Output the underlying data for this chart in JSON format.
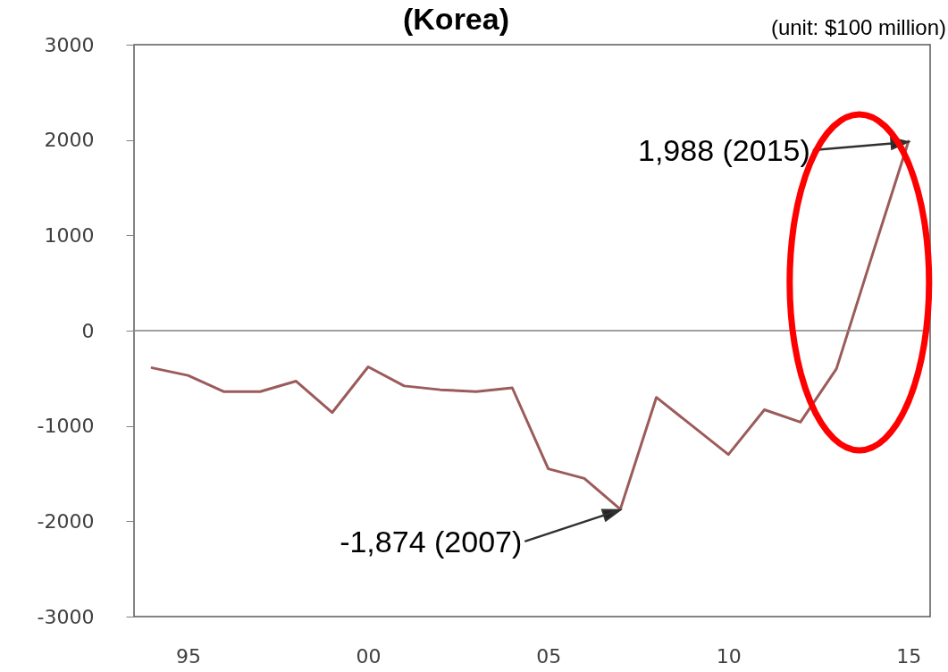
{
  "chart_data": {
    "type": "line",
    "title": "(Korea)",
    "annotations": [
      "(unit: $100 million)",
      {
        "text": "1,988 (2015)",
        "x": 2015,
        "y": 1988
      },
      {
        "text": "-1,874 (2007)",
        "x": 2007,
        "y": -1874
      }
    ],
    "x": [
      1994,
      1995,
      1996,
      1997,
      1998,
      1999,
      2000,
      2001,
      2002,
      2003,
      2004,
      2005,
      2006,
      2007,
      2008,
      2009,
      2010,
      2011,
      2012,
      2013,
      2014,
      2015
    ],
    "series": [
      {
        "color": "#9c5b5b",
        "values": [
          -390,
          -470,
          -640,
          -640,
          -530,
          -860,
          -380,
          -580,
          -620,
          -640,
          -600,
          -1450,
          -1550,
          -1874,
          -700,
          -1000,
          -1300,
          -830,
          -960,
          -400,
          800,
          1988
        ]
      }
    ],
    "xlim": [
      1993.5,
      2015.6
    ],
    "xticks": [
      {
        "value": 1995,
        "label": "95"
      },
      {
        "value": 2000,
        "label": "00"
      },
      {
        "value": 2005,
        "label": "05"
      },
      {
        "value": 2010,
        "label": "10"
      },
      {
        "value": 2015,
        "label": "15"
      }
    ],
    "ylim": [
      -3000,
      3000
    ],
    "yticks": [
      -3000,
      -2000,
      -1000,
      0,
      1000,
      2000,
      3000
    ],
    "line_style": "solid",
    "ref_lines": [
      {
        "axis": "y",
        "value": 0,
        "color": "#808080"
      }
    ]
  }
}
